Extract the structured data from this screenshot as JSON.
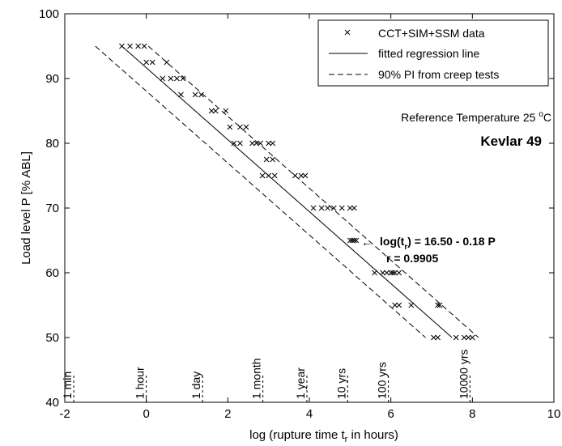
{
  "chart_data": {
    "type": "scatter",
    "xlabel_main": "log (rupture time t",
    "xlabel_sub": "r",
    "xlabel_tail": " in hours)",
    "ylabel": "Load level P   [% ABL]",
    "xlim": [
      -2,
      10
    ],
    "ylim": [
      40,
      100
    ],
    "xticks": [
      -2,
      0,
      2,
      4,
      6,
      8,
      10
    ],
    "yticks": [
      40,
      50,
      60,
      70,
      80,
      90,
      100
    ],
    "grid": false,
    "legend_position": "top-right",
    "legend": {
      "data": "CCT+SIM+SSM data",
      "fit": "fitted regression line",
      "pi": "90% PI from creep tests"
    },
    "annotations": {
      "ref_temp_main": "Reference Temperature 25 ",
      "ref_temp_sup": "o",
      "ref_temp_tail": "C",
      "material": "Kevlar 49",
      "equation_prefix": "log(t",
      "equation_sub": "r",
      "equation_tail": ") = 16.50 - 0.18 P",
      "r_value": "r = 0.9905",
      "arrow": "←"
    },
    "time_markers": [
      {
        "label": "1 min",
        "x": -1.78
      },
      {
        "label": "1 hour",
        "x": 0.0
      },
      {
        "label": "1 day",
        "x": 1.38
      },
      {
        "label": "1 month",
        "x": 2.86
      },
      {
        "label": "1 year",
        "x": 3.94
      },
      {
        "label": "10 yrs",
        "x": 4.94
      },
      {
        "label": "100 yrs",
        "x": 5.94
      },
      {
        "label": "10000 yrs",
        "x": 7.94
      }
    ],
    "fit_line": {
      "slope": -0.18,
      "intercept": 16.5
    },
    "pi_offset": 0.65,
    "series": [
      {
        "name": "CCT+SIM+SSM data",
        "marker": "x",
        "points": [
          [
            -0.6,
            95
          ],
          [
            -0.4,
            95
          ],
          [
            -0.2,
            95
          ],
          [
            -0.05,
            95
          ],
          [
            0.0,
            92.5
          ],
          [
            0.15,
            92.5
          ],
          [
            0.5,
            92.5
          ],
          [
            0.4,
            90
          ],
          [
            0.6,
            90
          ],
          [
            0.75,
            90
          ],
          [
            0.9,
            90
          ],
          [
            0.85,
            87.5
          ],
          [
            1.2,
            87.5
          ],
          [
            1.35,
            87.5
          ],
          [
            1.6,
            85
          ],
          [
            1.7,
            85
          ],
          [
            1.95,
            85
          ],
          [
            2.05,
            82.5
          ],
          [
            2.3,
            82.5
          ],
          [
            2.45,
            82.5
          ],
          [
            2.15,
            80
          ],
          [
            2.3,
            80
          ],
          [
            2.6,
            80
          ],
          [
            2.7,
            80
          ],
          [
            2.8,
            80
          ],
          [
            3.0,
            80
          ],
          [
            3.1,
            80
          ],
          [
            2.95,
            77.5
          ],
          [
            3.1,
            77.5
          ],
          [
            2.85,
            75
          ],
          [
            3.0,
            75
          ],
          [
            3.15,
            75
          ],
          [
            3.65,
            75
          ],
          [
            3.8,
            75
          ],
          [
            3.9,
            75
          ],
          [
            4.1,
            70
          ],
          [
            4.3,
            70
          ],
          [
            4.45,
            70
          ],
          [
            4.6,
            70
          ],
          [
            4.8,
            70
          ],
          [
            5.0,
            70
          ],
          [
            5.1,
            70
          ],
          [
            5.0,
            65
          ],
          [
            5.05,
            65
          ],
          [
            5.1,
            65
          ],
          [
            5.15,
            65
          ],
          [
            5.6,
            60
          ],
          [
            5.8,
            60
          ],
          [
            5.9,
            60
          ],
          [
            6.0,
            60
          ],
          [
            6.05,
            60
          ],
          [
            6.1,
            60
          ],
          [
            6.2,
            60
          ],
          [
            6.1,
            55
          ],
          [
            6.2,
            55
          ],
          [
            6.5,
            55
          ],
          [
            7.15,
            55
          ],
          [
            7.2,
            55
          ],
          [
            7.05,
            50
          ],
          [
            7.15,
            50
          ],
          [
            7.6,
            50
          ],
          [
            7.8,
            50
          ],
          [
            7.9,
            50
          ],
          [
            8.0,
            50
          ]
        ]
      }
    ]
  }
}
